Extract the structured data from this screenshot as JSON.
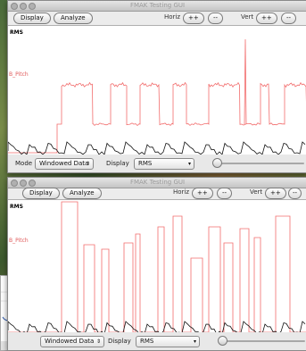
{
  "window_top": {
    "title": "FMAK Testing GUI",
    "toolbar": {
      "display_label": "Display",
      "analyze_label": "Analyze",
      "horiz_label": "Horiz",
      "vert_label": "Vert",
      "plus_label": "++",
      "minus_label": "--"
    },
    "plot": {
      "rms_label": "RMS",
      "pitch_label": "B_Pitch"
    },
    "bottom": {
      "mode_label": "Mode",
      "mode_value": "Windowed Data",
      "display_label": "Display",
      "display_value": "RMS"
    }
  },
  "window_bottom": {
    "title": "FMAK Testing GUI",
    "toolbar": {
      "display_label": "Display",
      "analyze_label": "Analyze",
      "horiz_label": "Horiz",
      "vert_label": "Vert",
      "plus_label": "++",
      "minus_label": "--"
    },
    "plot": {
      "rms_label": "RMS",
      "pitch_label": "B_Pitch"
    },
    "bottom": {
      "mode_value": "Windowed Data",
      "display_label": "Display",
      "display_value": "RMS"
    }
  },
  "colors": {
    "pitch_trace": "#f26d6d",
    "rms_trace": "#111111"
  },
  "icons": {
    "popup_arrow": "⇕",
    "popup_caret": "▾"
  }
}
